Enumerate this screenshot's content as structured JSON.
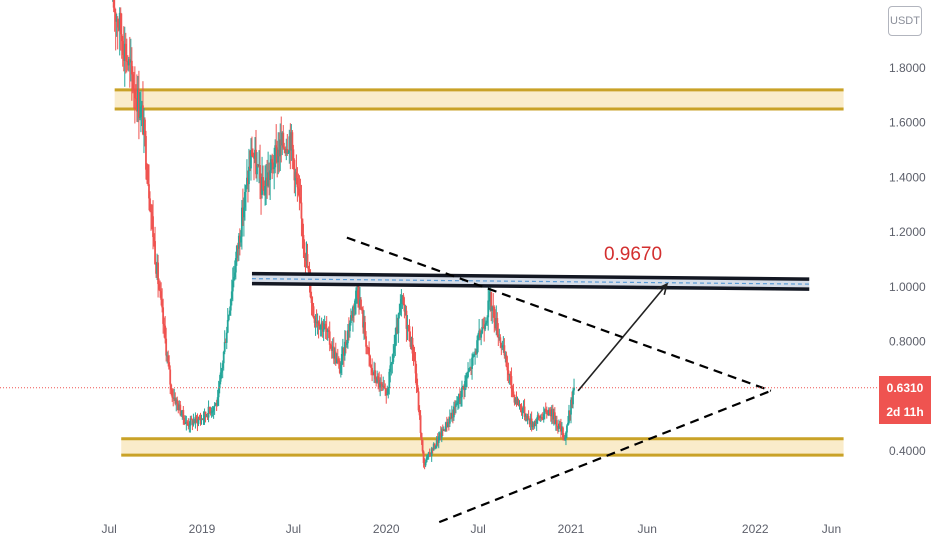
{
  "currency": "USDT",
  "last_price": "0.6310",
  "countdown": "2d 11h",
  "colors": {
    "up": "#26a69a",
    "down": "#ef5350",
    "zone_fill": "#f8e6b8",
    "zone_border": "#c9a227",
    "resistance_line": "#131722",
    "target_text": "#d32f2f",
    "axis_text": "#5d606b",
    "price_line": "#ef5350"
  },
  "chart_data": {
    "type": "candlestick",
    "y_axis": {
      "ticks": [
        "1.8000",
        "1.6000",
        "1.4000",
        "1.2000",
        "1.0000",
        "0.8000",
        "0.4000"
      ],
      "tick_values": [
        1.8,
        1.6,
        1.4,
        1.2,
        1.0,
        0.8,
        0.4
      ],
      "range": [
        0.14,
        2.06
      ]
    },
    "x_axis": {
      "ticks": [
        "Jul",
        "2019",
        "Jul",
        "2020",
        "Jul",
        "2021",
        "Jun",
        "2022",
        "Jun"
      ],
      "tick_dates": [
        "2018-07",
        "2019-01",
        "2019-07",
        "2020-01",
        "2020-07",
        "2021-01",
        "2021-06",
        "2022-01",
        "2022-06"
      ]
    },
    "price_path": [
      [
        "2018-07-08",
        2.05
      ],
      [
        "2018-07-22",
        1.95
      ],
      [
        "2018-08-10",
        1.8
      ],
      [
        "2018-09-05",
        1.62
      ],
      [
        "2018-10-01",
        1.1
      ],
      [
        "2018-11-01",
        0.62
      ],
      [
        "2018-12-01",
        0.5
      ],
      [
        "2019-01-01",
        0.52
      ],
      [
        "2019-02-01",
        0.58
      ],
      [
        "2019-03-01",
        1.0
      ],
      [
        "2019-04-10",
        1.5
      ],
      [
        "2019-05-01",
        1.35
      ],
      [
        "2019-06-01",
        1.5
      ],
      [
        "2019-06-25",
        1.55
      ],
      [
        "2019-07-20",
        1.2
      ],
      [
        "2019-08-10",
        0.9
      ],
      [
        "2019-09-01",
        0.85
      ],
      [
        "2019-10-01",
        0.7
      ],
      [
        "2019-11-05",
        1.0
      ],
      [
        "2019-12-01",
        0.7
      ],
      [
        "2020-01-01",
        0.6
      ],
      [
        "2020-02-01",
        0.95
      ],
      [
        "2020-02-25",
        0.75
      ],
      [
        "2020-03-15",
        0.35
      ],
      [
        "2020-04-15",
        0.45
      ],
      [
        "2020-05-15",
        0.55
      ],
      [
        "2020-06-15",
        0.7
      ],
      [
        "2020-07-25",
        0.95
      ],
      [
        "2020-08-15",
        0.8
      ],
      [
        "2020-09-10",
        0.6
      ],
      [
        "2020-10-15",
        0.5
      ],
      [
        "2020-11-20",
        0.55
      ],
      [
        "2020-12-20",
        0.45
      ],
      [
        "2021-01-07",
        0.631
      ]
    ],
    "horizontal_zones": [
      {
        "from": 1.65,
        "to": 1.72,
        "x_start": "2018-07-12",
        "x_end": "2022-06-25"
      },
      {
        "from": 0.385,
        "to": 0.445,
        "x_start": "2018-07-25",
        "x_end": "2022-06-25"
      }
    ],
    "resistance_channel": {
      "price": 1.03,
      "x_start": "2019-04-10",
      "x_end": "2022-04-18",
      "slope_down": 0.02
    },
    "descending_trendline": [
      [
        "2019-10-15",
        1.18
      ],
      [
        "2022-02-01",
        0.62
      ]
    ],
    "ascending_trendline": [
      [
        "2020-04-15",
        0.14
      ],
      [
        "2022-02-01",
        0.62
      ]
    ],
    "projection_arrow": [
      [
        "2021-01-15",
        0.62
      ],
      [
        "2021-07-10",
        1.01
      ]
    ],
    "target_label": "0.9670",
    "last_price": 0.631
  }
}
